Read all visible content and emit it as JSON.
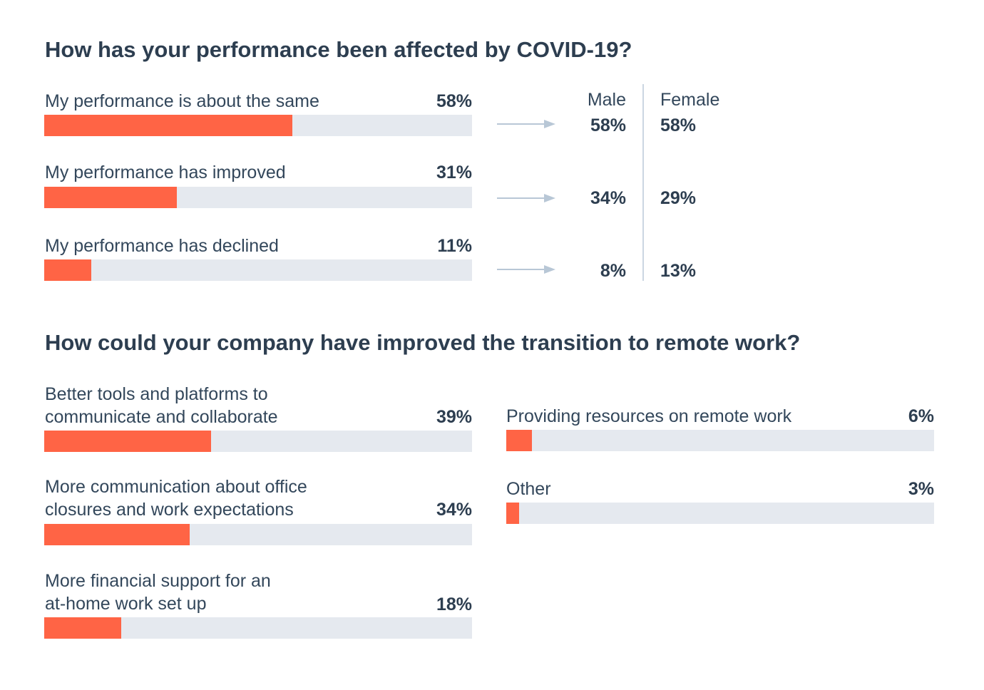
{
  "chart_data": [
    {
      "type": "bar",
      "orientation": "horizontal",
      "title": "How has your performance been affected by COVID-19?",
      "categories": [
        "My performance is about the same",
        "My performance has improved",
        "My performance has declined"
      ],
      "values": [
        58,
        31,
        11
      ],
      "value_labels": [
        "58%",
        "31%",
        "11%"
      ],
      "xlim": [
        0,
        100
      ],
      "breakdown": {
        "columns": [
          "Male",
          "Female"
        ],
        "rows": [
          [
            "58%",
            "58%"
          ],
          [
            "34%",
            "29%"
          ],
          [
            "8%",
            "13%"
          ]
        ]
      }
    },
    {
      "type": "bar",
      "orientation": "horizontal",
      "title": "How could your company have improved the transition to remote work?",
      "categories": [
        "Better tools and platforms to\ncommunicate and collaborate",
        "More communication about office\nclosures and work expectations",
        "More financial support for an\nat-home work set up",
        "Providing resources on remote work",
        "Other"
      ],
      "values": [
        39,
        34,
        18,
        6,
        3
      ],
      "value_labels": [
        "39%",
        "34%",
        "18%",
        "6%",
        "3%"
      ],
      "xlim": [
        0,
        100
      ]
    }
  ],
  "colors": {
    "bar_fill": "#ff6445",
    "bar_track": "#e5e9ef",
    "text_dark": "#2d3e50",
    "arrow": "#b8c7d6",
    "divider": "#cbd6e2"
  }
}
